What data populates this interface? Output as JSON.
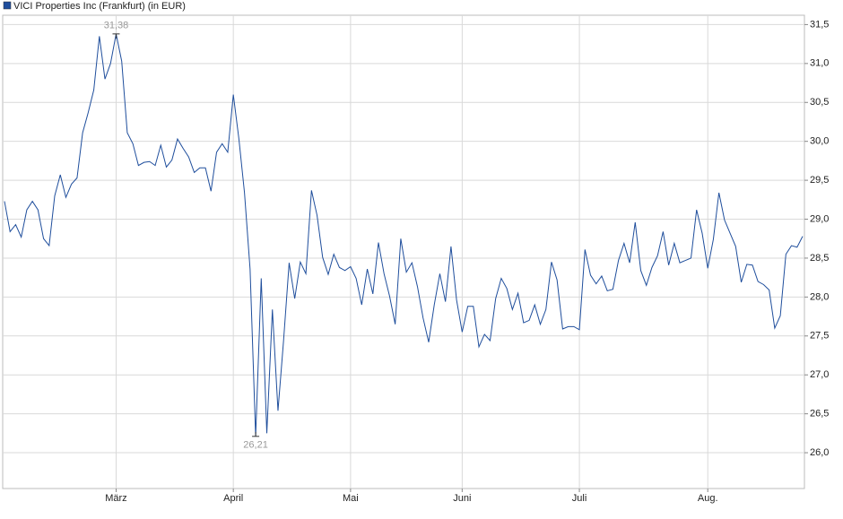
{
  "chart_data": {
    "type": "line",
    "categories": [
      null,
      null,
      null,
      null,
      null,
      null,
      null,
      null,
      null,
      null,
      null,
      null,
      null,
      null,
      null,
      null,
      null,
      null,
      null,
      null,
      "März",
      null,
      null,
      null,
      null,
      null,
      null,
      null,
      null,
      null,
      null,
      null,
      null,
      null,
      null,
      null,
      null,
      null,
      null,
      null,
      null,
      "April",
      null,
      null,
      null,
      null,
      null,
      null,
      null,
      null,
      null,
      null,
      null,
      null,
      null,
      null,
      null,
      null,
      null,
      null,
      null,
      null,
      "Mai",
      null,
      null,
      null,
      null,
      null,
      null,
      null,
      null,
      null,
      null,
      null,
      null,
      null,
      null,
      null,
      null,
      null,
      null,
      null,
      "Juni",
      null,
      null,
      null,
      null,
      null,
      null,
      null,
      null,
      null,
      null,
      null,
      null,
      null,
      null,
      null,
      null,
      null,
      null,
      null,
      null,
      "Juli",
      null,
      null,
      null,
      null,
      null,
      null,
      null,
      null,
      null,
      null,
      null,
      null,
      null,
      null,
      null,
      null,
      null,
      null,
      null,
      null,
      null,
      null,
      "Aug.",
      null,
      null,
      null,
      null,
      null,
      null,
      null,
      null,
      null,
      null,
      null,
      null,
      null,
      null,
      null,
      null,
      null
    ],
    "series": [
      {
        "name": "VICI Properties Inc (Frankfurt) (in EUR)",
        "color": "#1f4e9c",
        "values": [
          29.23,
          28.84,
          28.93,
          28.77,
          29.12,
          29.23,
          29.12,
          28.75,
          28.66,
          29.3,
          29.57,
          29.28,
          29.45,
          29.53,
          30.11,
          30.37,
          30.66,
          31.35,
          30.8,
          31.0,
          31.38,
          31.03,
          30.11,
          29.97,
          29.69,
          29.73,
          29.74,
          29.69,
          29.95,
          29.67,
          29.76,
          30.03,
          29.91,
          29.8,
          29.6,
          29.66,
          29.66,
          29.36,
          29.86,
          29.97,
          29.86,
          30.6,
          30.03,
          29.34,
          28.36,
          26.21,
          28.24,
          26.25,
          27.84,
          26.54,
          27.44,
          28.44,
          27.98,
          28.45,
          28.3,
          29.37,
          29.05,
          28.51,
          28.29,
          28.55,
          28.38,
          28.34,
          28.39,
          28.24,
          27.9,
          28.36,
          28.04,
          28.7,
          28.3,
          28.01,
          27.65,
          28.75,
          28.32,
          28.44,
          28.13,
          27.73,
          27.42,
          27.9,
          28.3,
          27.94,
          28.65,
          27.96,
          27.55,
          27.88,
          27.88,
          27.36,
          27.52,
          27.44,
          27.98,
          28.24,
          28.11,
          27.84,
          28.05,
          27.67,
          27.7,
          27.9,
          27.65,
          27.84,
          28.45,
          28.22,
          27.59,
          27.62,
          27.62,
          27.58,
          28.61,
          28.28,
          28.17,
          28.27,
          28.08,
          28.1,
          28.47,
          28.69,
          28.44,
          28.96,
          28.34,
          28.15,
          28.38,
          28.53,
          28.84,
          28.41,
          28.69,
          28.44,
          28.47,
          28.5,
          29.12,
          28.82,
          28.37,
          28.74,
          29.34,
          28.99,
          28.82,
          28.65,
          28.19,
          28.42,
          28.41,
          28.2,
          28.16,
          28.09,
          27.6,
          27.76,
          28.55,
          28.66,
          28.64,
          28.78
        ],
        "value_labels": [
          null,
          null,
          null,
          null,
          null,
          null,
          null,
          null,
          null,
          null,
          null,
          null,
          null,
          null,
          null,
          null,
          null,
          null,
          null,
          null,
          "31,38",
          null,
          null,
          null,
          null,
          null,
          null,
          null,
          null,
          null,
          null,
          null,
          null,
          null,
          null,
          null,
          null,
          null,
          null,
          null,
          null,
          null,
          null,
          null,
          null,
          "26,21",
          null,
          null,
          null,
          null,
          null,
          null,
          null,
          null,
          null,
          null,
          null,
          null,
          null,
          null,
          null,
          null,
          null,
          null,
          null,
          null,
          null,
          null,
          null,
          null,
          null,
          null,
          null,
          null,
          null,
          null,
          null,
          null,
          null,
          null,
          null,
          null,
          null,
          null,
          null,
          null,
          null,
          null,
          null,
          null,
          null,
          null,
          null,
          null,
          null,
          null,
          null,
          null,
          null,
          null,
          null,
          null,
          null,
          null,
          null,
          null,
          null,
          null,
          null,
          null,
          null,
          null,
          null,
          null,
          null,
          null,
          null,
          null,
          null,
          null,
          null,
          null,
          null,
          null,
          null,
          null,
          null,
          null,
          null,
          null,
          null,
          null,
          null,
          null,
          null,
          null,
          null,
          null,
          null,
          null,
          null,
          null,
          null,
          null
        ]
      }
    ],
    "ylim": [
      25.54,
      31.62
    ],
    "yticks": [
      {
        "value": 26.0,
        "label": "26,0"
      },
      {
        "value": 26.5,
        "label": "26,5"
      },
      {
        "value": 27.0,
        "label": "27,0"
      },
      {
        "value": 27.5,
        "label": "27,5"
      },
      {
        "value": 28.0,
        "label": "28,0"
      },
      {
        "value": 28.5,
        "label": "28,5"
      },
      {
        "value": 29.0,
        "label": "29,0"
      },
      {
        "value": 29.5,
        "label": "29,5"
      },
      {
        "value": 30.0,
        "label": "30,0"
      },
      {
        "value": 30.5,
        "label": "30,5"
      },
      {
        "value": 31.0,
        "label": "31,0"
      },
      {
        "value": 31.5,
        "label": "31,5"
      }
    ],
    "grid": true,
    "legend": "top-left"
  }
}
